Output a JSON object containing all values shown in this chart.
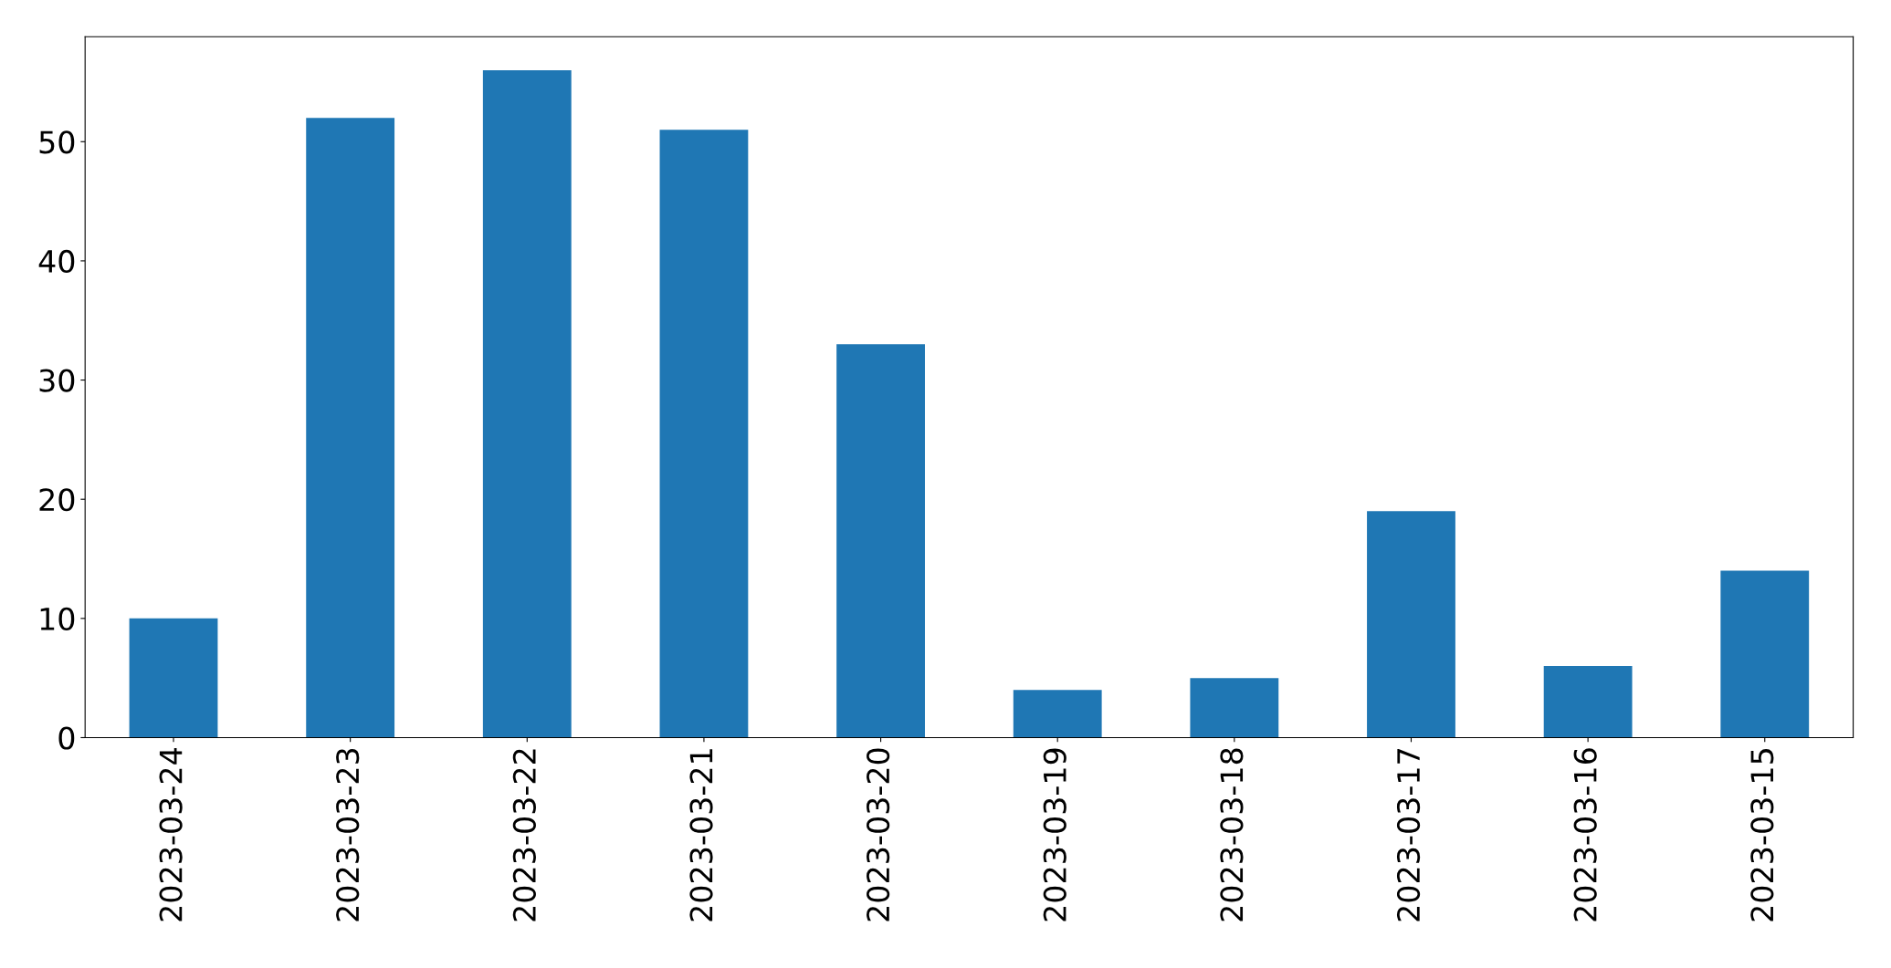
{
  "chart_data": {
    "type": "bar",
    "categories": [
      "2023-03-24",
      "2023-03-23",
      "2023-03-22",
      "2023-03-21",
      "2023-03-20",
      "2023-03-19",
      "2023-03-18",
      "2023-03-17",
      "2023-03-16",
      "2023-03-15"
    ],
    "values": [
      10,
      52,
      56,
      51,
      33,
      4,
      5,
      19,
      6,
      14
    ],
    "color": "#1f77b4",
    "ylim": [
      0,
      58.8
    ],
    "yticks": [
      0,
      10,
      20,
      30,
      40,
      50
    ],
    "grid": false,
    "legend": false
  }
}
